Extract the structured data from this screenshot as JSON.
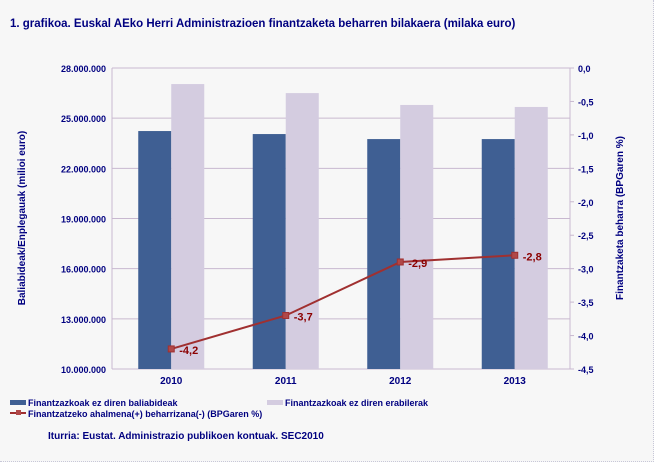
{
  "chart_data": {
    "type": "bar+line",
    "title": "1. grafikoa. Euskal AEko Herri Administrazioen finantzaketa beharren bilakaera (milaka euro)",
    "categories": [
      "2010",
      "2011",
      "2012",
      "2013"
    ],
    "ylabel": "Baliabideak/Enplegauak  (milioi euro)",
    "y2label": "Finantzaketa beharra (BPGaren %)",
    "ylim": [
      10000000,
      28000000
    ],
    "y2lim": [
      -4.5,
      0
    ],
    "yticks": [
      "10.000.000",
      "13.000.000",
      "16.000.000",
      "19.000.000",
      "22.000.000",
      "25.000.000",
      "28.000.000"
    ],
    "y2ticks": [
      "-4,5",
      "-4,0",
      "-3,5",
      "-3,0",
      "-2,5",
      "-2,0",
      "-1,5",
      "-1,0",
      "-0,5",
      "0,0"
    ],
    "grid": true,
    "legend_placement": "bottom",
    "series": [
      {
        "name": "Finantzazkoak ez diren baliabideak",
        "type": "bar",
        "axis": "left",
        "color": "#3f5f93",
        "values": [
          24230000,
          24050000,
          23750000,
          23750000
        ]
      },
      {
        "name": "Finantzazkoak ez diren erabilerak",
        "type": "bar",
        "axis": "left",
        "color": "#d4cce0",
        "values": [
          27040000,
          26500000,
          25790000,
          25670000
        ]
      },
      {
        "name": "Finantzatzeko ahalmena(+) beharrizana(-) (BPGaren %)",
        "type": "line",
        "axis": "right",
        "color": "#a03030",
        "values": [
          -4.2,
          -3.7,
          -2.9,
          -2.8
        ],
        "labels": [
          "-4,2",
          "-3,7",
          "-2,9",
          "-2,8"
        ]
      }
    ]
  },
  "source": "Iturria: Eustat. Administrazio publikoen kontuak. SEC2010"
}
